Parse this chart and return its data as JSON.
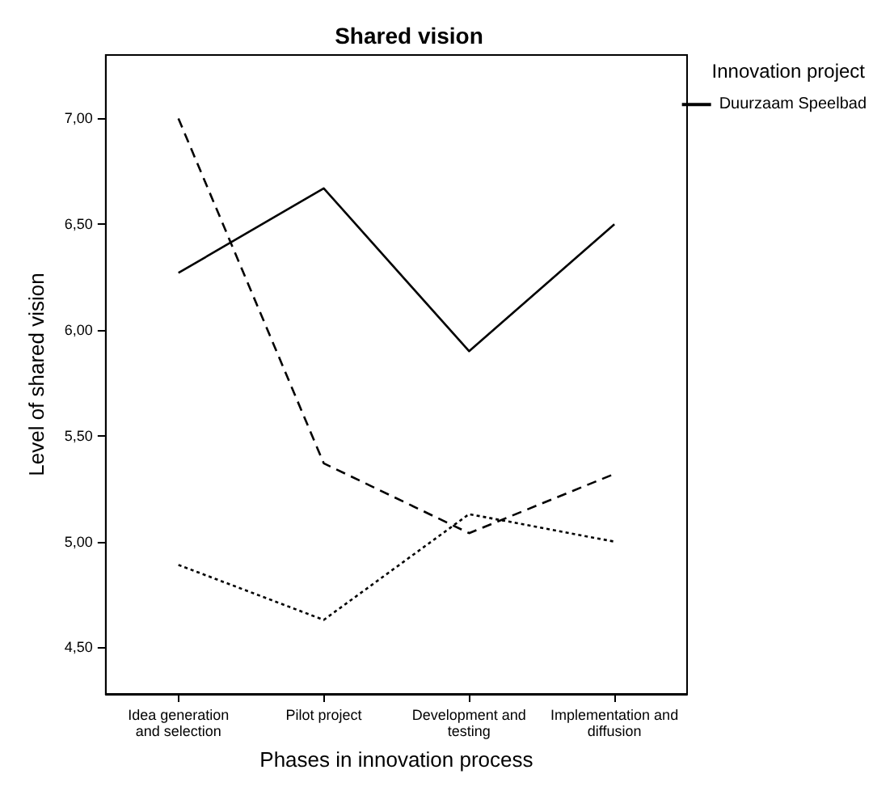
{
  "chart_data": {
    "type": "line",
    "title": "Shared vision",
    "xlabel": "Phases in innovation process",
    "ylabel": "Level of shared vision",
    "legend_title": "Innovation project",
    "legend": "top right",
    "categories": [
      "Idea generation\nand selection",
      "Pilot project",
      "Development and\ntesting",
      "Implementation and\ndiffusion"
    ],
    "series": [
      {
        "name": "Duurzaam Speelbad",
        "color": "#000000",
        "line_style": "solid",
        "values": [
          6.27,
          6.67,
          5.9,
          6.5
        ]
      },
      {
        "color": "#000000",
        "line_style": "dotted",
        "values": [
          4.89,
          4.63,
          5.13,
          5.0
        ]
      },
      {
        "color": "#000000",
        "line_style": "dashed",
        "values": [
          7.0,
          5.37,
          5.04,
          5.32
        ]
      }
    ],
    "marker": "none",
    "ylim": [
      4.28,
      7.3
    ],
    "yticks": [
      {
        "value": 4.5,
        "label": "4,50"
      },
      {
        "value": 5.0,
        "label": "5,00"
      },
      {
        "value": 5.5,
        "label": "5,50"
      },
      {
        "value": 6.0,
        "label": "6,00"
      },
      {
        "value": 6.5,
        "label": "6,50"
      },
      {
        "value": 7.0,
        "label": "7,00"
      }
    ]
  }
}
